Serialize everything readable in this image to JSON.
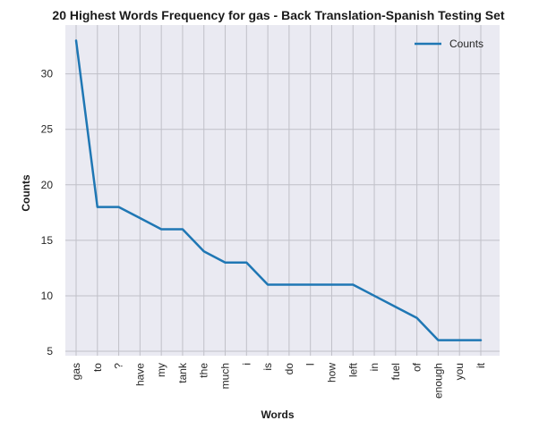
{
  "chart_data": {
    "type": "line",
    "title": "20 Highest Words Frequency for gas - Back Translation-Spanish Testing Set",
    "xlabel": "Words",
    "ylabel": "Counts",
    "categories": [
      "gas",
      "to",
      "?",
      "have",
      "my",
      "tank",
      "the",
      "much",
      "i",
      "is",
      "do",
      "I",
      "how",
      "left",
      "in",
      "fuel",
      "of",
      "enough",
      "you",
      "it"
    ],
    "series": [
      {
        "name": "Counts",
        "values": [
          33,
          18,
          18,
          17,
          16,
          16,
          14,
          13,
          13,
          11,
          11,
          11,
          11,
          11,
          10,
          9,
          8,
          6,
          6,
          6
        ],
        "color": "#1f77b4"
      }
    ],
    "y_ticks": [
      5,
      10,
      15,
      20,
      25,
      30
    ],
    "ylim": [
      4.6,
      34.4
    ],
    "grid": true,
    "legend_position": "upper right",
    "background_color": "#eaeaf2",
    "grid_color": "#c0c0c8"
  }
}
